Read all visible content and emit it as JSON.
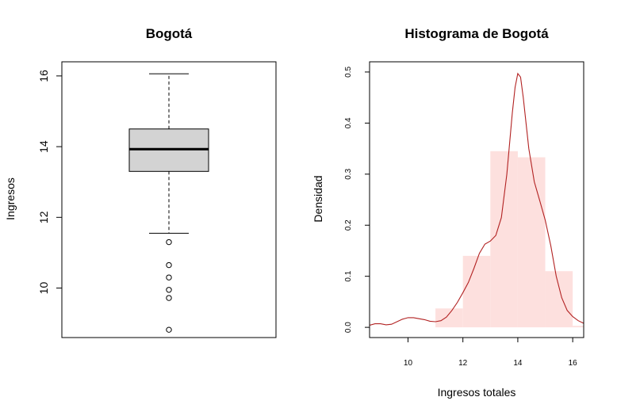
{
  "chart_data": [
    {
      "type": "box",
      "title": "Bogotá",
      "xlabel": "",
      "ylabel": "Ingresos",
      "ylim": [
        8.6,
        16.4
      ],
      "yticks": [
        10,
        12,
        14,
        16
      ],
      "box": {
        "whisker_low": 11.55,
        "q1": 13.3,
        "median": 13.93,
        "q3": 14.5,
        "whisker_high": 16.06
      },
      "outliers": [
        11.3,
        10.65,
        10.3,
        9.95,
        9.72,
        8.82
      ],
      "colors": {
        "box_fill": "#d3d3d3",
        "stroke": "#000000"
      }
    },
    {
      "type": "histogram",
      "title": "Histograma de Bogotá",
      "xlabel": "Ingresos totales",
      "ylabel": "Densidad",
      "xlim": [
        8.6,
        16.4
      ],
      "ylim": [
        -0.02,
        0.52
      ],
      "xticks": [
        10,
        12,
        14,
        16
      ],
      "yticks": [
        0.0,
        0.1,
        0.2,
        0.3,
        0.4,
        0.5
      ],
      "bins": [
        {
          "x0": 8,
          "x1": 9,
          "density": 0.0
        },
        {
          "x0": 9,
          "x1": 10,
          "density": 0.0
        },
        {
          "x0": 10,
          "x1": 11,
          "density": 0.0
        },
        {
          "x0": 11,
          "x1": 12,
          "density": 0.037
        },
        {
          "x0": 12,
          "x1": 13,
          "density": 0.14
        },
        {
          "x0": 13,
          "x1": 14,
          "density": 0.345
        },
        {
          "x0": 14,
          "x1": 15,
          "density": 0.333
        },
        {
          "x0": 15,
          "x1": 16,
          "density": 0.11
        },
        {
          "x0": 16,
          "x1": 17,
          "density": 0.003
        }
      ],
      "density_curve": [
        [
          8.6,
          0.004
        ],
        [
          8.8,
          0.007
        ],
        [
          9.0,
          0.007
        ],
        [
          9.2,
          0.005
        ],
        [
          9.4,
          0.006
        ],
        [
          9.6,
          0.011
        ],
        [
          9.8,
          0.016
        ],
        [
          10.0,
          0.019
        ],
        [
          10.2,
          0.019
        ],
        [
          10.4,
          0.017
        ],
        [
          10.6,
          0.015
        ],
        [
          10.8,
          0.012
        ],
        [
          11.0,
          0.011
        ],
        [
          11.2,
          0.013
        ],
        [
          11.4,
          0.02
        ],
        [
          11.6,
          0.033
        ],
        [
          11.8,
          0.049
        ],
        [
          12.0,
          0.068
        ],
        [
          12.2,
          0.088
        ],
        [
          12.4,
          0.115
        ],
        [
          12.6,
          0.145
        ],
        [
          12.8,
          0.163
        ],
        [
          13.0,
          0.169
        ],
        [
          13.2,
          0.18
        ],
        [
          13.4,
          0.215
        ],
        [
          13.6,
          0.3
        ],
        [
          13.8,
          0.42
        ],
        [
          13.9,
          0.47
        ],
        [
          14.0,
          0.497
        ],
        [
          14.1,
          0.49
        ],
        [
          14.2,
          0.45
        ],
        [
          14.4,
          0.35
        ],
        [
          14.6,
          0.285
        ],
        [
          14.8,
          0.248
        ],
        [
          15.0,
          0.21
        ],
        [
          15.2,
          0.16
        ],
        [
          15.4,
          0.1
        ],
        [
          15.6,
          0.058
        ],
        [
          15.8,
          0.033
        ],
        [
          16.0,
          0.021
        ],
        [
          16.2,
          0.013
        ],
        [
          16.4,
          0.008
        ]
      ],
      "colors": {
        "bar_fill": "#fde0de",
        "curve": "#b22222",
        "frame": "#000000"
      }
    }
  ]
}
